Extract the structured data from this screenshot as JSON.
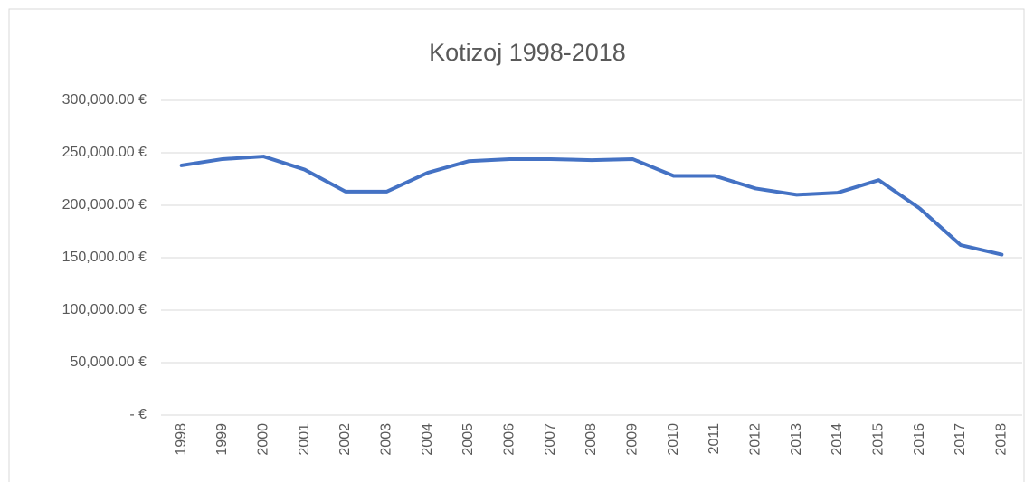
{
  "chart_data": {
    "type": "line",
    "title": "Kotizoj 1998-2018",
    "categories": [
      "1998",
      "1999",
      "2000",
      "2001",
      "2002",
      "2003",
      "2004",
      "2005",
      "2006",
      "2007",
      "2008",
      "2009",
      "2010",
      "2011",
      "2012",
      "2013",
      "2014",
      "2015",
      "2016",
      "2017",
      "2018"
    ],
    "values": [
      238000,
      244000,
      246500,
      234000,
      213000,
      213000,
      231000,
      242000,
      244000,
      244000,
      243000,
      244000,
      228000,
      228000,
      216000,
      210000,
      212000,
      224000,
      197000,
      162000,
      153000
    ],
    "color": "#4472c4",
    "ylim": [
      0,
      300000
    ],
    "yticks": [
      {
        "value": 0,
        "label": "- €"
      },
      {
        "value": 50000,
        "label": "50,000.00 €"
      },
      {
        "value": 100000,
        "label": "100,000.00 €"
      },
      {
        "value": 150000,
        "label": "150,000.00 €"
      },
      {
        "value": 200000,
        "label": "200,000.00 €"
      },
      {
        "value": 250000,
        "label": "250,000.00 €"
      },
      {
        "value": 300000,
        "label": "300,000.00 €"
      }
    ],
    "grid": true
  }
}
